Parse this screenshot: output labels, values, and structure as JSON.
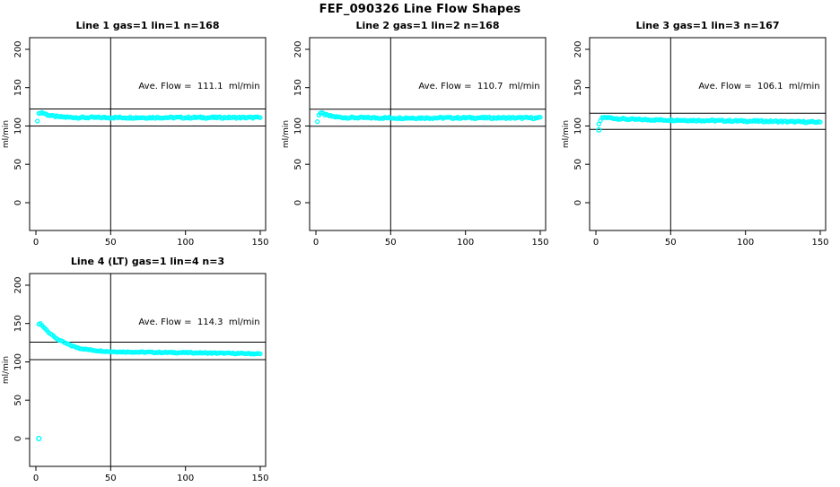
{
  "title": "FEF_090326  Line Flow Shapes",
  "colors": {
    "points": "#00ffff",
    "lines": "#000000",
    "background": "#ffffff"
  },
  "chart_data": [
    {
      "type": "scatter",
      "title": "Line 1 gas=1 lin=1 n=168",
      "annotation": "Ave. Flow =  111.1  ml/min",
      "ave_flow": 111.1,
      "n": 168,
      "xlabel": "",
      "ylabel": "ml/min",
      "xticks": [
        0,
        50,
        100,
        150
      ],
      "yticks": [
        0,
        50,
        100,
        150,
        200
      ],
      "xlim": [
        -4.2,
        153.6
      ],
      "ylim": [
        -36.3,
        215.2
      ],
      "grid": false,
      "legend": "none",
      "hlines": [
        122.2,
        100.0
      ],
      "vline": 50,
      "series": {
        "name": "flow",
        "point_count": 150,
        "noise": 1.1,
        "keypoints": [
          [
            1,
            107.5
          ],
          [
            2,
            115.5
          ],
          [
            3,
            117.5
          ],
          [
            4,
            117.5
          ],
          [
            6,
            116
          ],
          [
            8,
            114.5
          ],
          [
            11,
            113
          ],
          [
            15,
            112
          ],
          [
            20,
            111.5
          ],
          [
            30,
            111
          ],
          [
            60,
            111
          ],
          [
            100,
            111
          ],
          [
            150,
            111
          ]
        ]
      },
      "outliers": []
    },
    {
      "type": "scatter",
      "title": "Line 2 gas=1 lin=2 n=168",
      "annotation": "Ave. Flow =  110.7  ml/min",
      "ave_flow": 110.7,
      "n": 168,
      "xlabel": "",
      "ylabel": "ml/min",
      "xticks": [
        0,
        50,
        100,
        150
      ],
      "yticks": [
        0,
        50,
        100,
        150,
        200
      ],
      "xlim": [
        -4.2,
        153.6
      ],
      "ylim": [
        -36.3,
        215.2
      ],
      "grid": false,
      "legend": "none",
      "hlines": [
        121.8,
        99.6
      ],
      "vline": 50,
      "series": {
        "name": "flow",
        "point_count": 150,
        "noise": 1.1,
        "keypoints": [
          [
            1,
            106.5
          ],
          [
            2,
            114.5
          ],
          [
            3,
            116.5
          ],
          [
            4,
            116.5
          ],
          [
            6,
            115
          ],
          [
            8,
            113.5
          ],
          [
            11,
            112.5
          ],
          [
            15,
            111.5
          ],
          [
            20,
            111
          ],
          [
            30,
            110.7
          ],
          [
            60,
            110.5
          ],
          [
            100,
            110.7
          ],
          [
            150,
            110.5
          ]
        ]
      },
      "outliers": []
    },
    {
      "type": "scatter",
      "title": "Line 3 gas=1 lin=3 n=167",
      "annotation": "Ave. Flow =  106.1  ml/min",
      "ave_flow": 106.1,
      "n": 167,
      "xlabel": "",
      "ylabel": "ml/min",
      "xticks": [
        0,
        50,
        100,
        150
      ],
      "yticks": [
        0,
        50,
        100,
        150,
        200
      ],
      "xlim": [
        -4.2,
        153.6
      ],
      "ylim": [
        -36.3,
        215.2
      ],
      "grid": false,
      "legend": "none",
      "hlines": [
        116.7,
        95.5
      ],
      "vline": 50,
      "series": {
        "name": "flow",
        "point_count": 148,
        "noise": 1.0,
        "keypoints": [
          [
            2,
            102
          ],
          [
            3,
            107
          ],
          [
            4,
            110
          ],
          [
            5,
            111
          ],
          [
            7,
            111
          ],
          [
            10,
            110.5
          ],
          [
            15,
            109.5
          ],
          [
            25,
            108.5
          ],
          [
            40,
            108
          ],
          [
            60,
            107.5
          ],
          [
            80,
            107
          ],
          [
            100,
            106.5
          ],
          [
            120,
            106
          ],
          [
            135,
            105.5
          ],
          [
            150,
            105
          ]
        ]
      },
      "outliers": [
        [
          2,
          95
        ]
      ]
    },
    {
      "type": "scatter",
      "title": "Line 4 (LT) gas=1 lin=4 n=3",
      "annotation": "Ave. Flow =  114.3  ml/min",
      "ave_flow": 114.3,
      "n": 3,
      "xlabel": "",
      "ylabel": "ml/min",
      "xticks": [
        0,
        50,
        100,
        150
      ],
      "yticks": [
        0,
        50,
        100,
        150,
        200
      ],
      "xlim": [
        -4.2,
        153.6
      ],
      "ylim": [
        -36.3,
        215.2
      ],
      "grid": false,
      "legend": "none",
      "hlines": [
        125.7,
        102.9
      ],
      "vline": 50,
      "series": {
        "name": "flow",
        "point_count": 148,
        "noise": 0.7,
        "keypoints": [
          [
            2,
            149
          ],
          [
            3,
            150
          ],
          [
            5,
            146
          ],
          [
            7,
            142
          ],
          [
            9,
            138
          ],
          [
            12,
            133
          ],
          [
            15,
            129
          ],
          [
            18,
            126
          ],
          [
            22,
            122.5
          ],
          [
            26,
            119.5
          ],
          [
            30,
            117.5
          ],
          [
            35,
            116
          ],
          [
            40,
            114.8
          ],
          [
            45,
            114
          ],
          [
            50,
            113.5
          ],
          [
            60,
            113
          ],
          [
            70,
            112.7
          ],
          [
            85,
            112.3
          ],
          [
            100,
            112
          ],
          [
            115,
            111.6
          ],
          [
            130,
            111.2
          ],
          [
            150,
            110.5
          ]
        ]
      },
      "outliers": [
        [
          2,
          0
        ]
      ]
    }
  ]
}
